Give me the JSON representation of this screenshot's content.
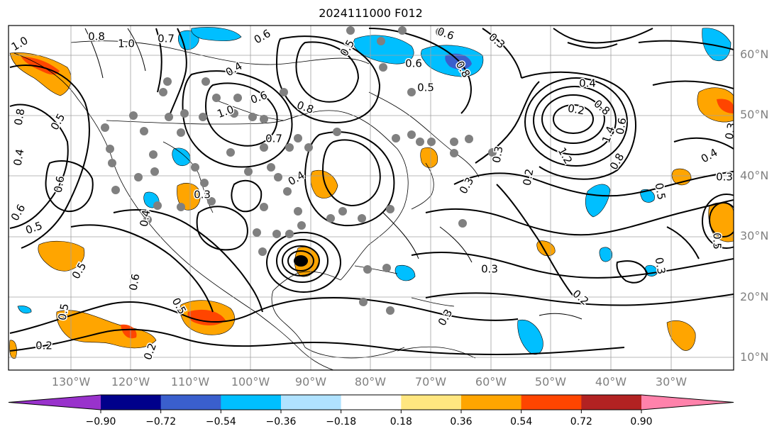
{
  "title": "2024111000 F012",
  "lat_labels": [
    "60°N",
    "50°N",
    "40°N",
    "30°N",
    "20°N",
    "10°N"
  ],
  "lon_labels": [
    "130°W",
    "120°W",
    "110°W",
    "100°W",
    "90°W",
    "80°W",
    "70°W",
    "60°W",
    "50°W",
    "40°W",
    "30°W"
  ],
  "colorbar": {
    "ticks": [
      "−0.90",
      "−0.72",
      "−0.54",
      "−0.36",
      "−0.18",
      "0.18",
      "0.36",
      "0.54",
      "0.72",
      "0.90"
    ],
    "colors": [
      "#9932cc",
      "#00008b",
      "#3a5fcd",
      "#00bfff",
      "#b0e2ff",
      "#ffffff",
      "#ffe680",
      "#ffa500",
      "#ff4500",
      "#b22222",
      "#ff82ab"
    ]
  },
  "contour_labels": [
    "1.0",
    "0.8",
    "1.0",
    "0.7",
    "0.6",
    "0.5",
    "0.6",
    "0.5",
    "0.3",
    "0.6",
    "0.8",
    "0.4",
    "0.6",
    "0.8",
    "1.0",
    "0.5",
    "0.8",
    "0.4",
    "0.7",
    "0.6",
    "0.5",
    "0.3",
    "0.4",
    "0.2",
    "0.8",
    "1.4",
    "1.2",
    "0.8",
    "0.4",
    "0.3",
    "0.5",
    "0.3",
    "0.5",
    "0.6",
    "0.3",
    "0.3",
    "0.3",
    "0.2",
    "0.2",
    "0.2",
    "0.3",
    "0.5",
    "0.5",
    "0.2",
    "0.5",
    "0.6",
    "0.4",
    "0.3",
    "0.4",
    "0.6"
  ],
  "colors": {
    "contour": "#000000",
    "grid": "#a0a0a0",
    "coast": "#000000",
    "dots": "#808080",
    "axis_label": "#808080"
  }
}
